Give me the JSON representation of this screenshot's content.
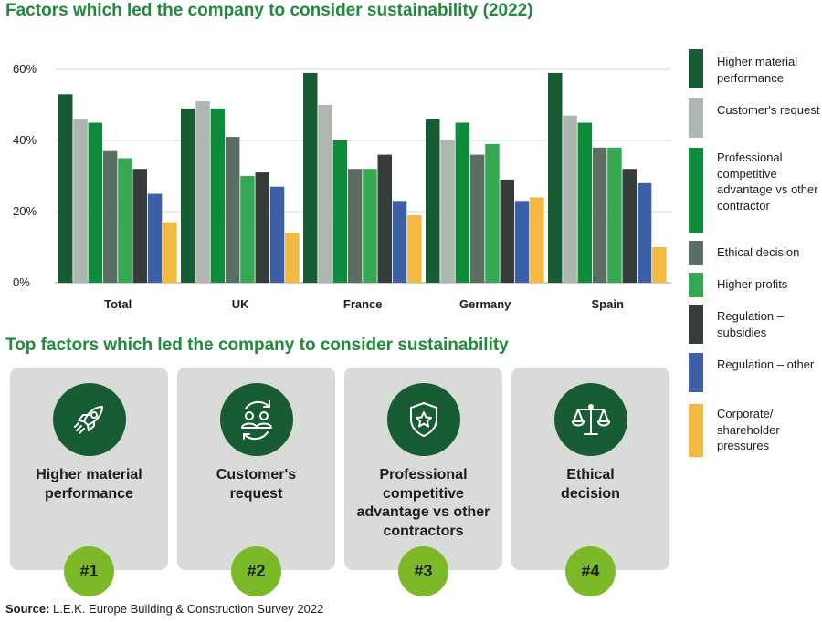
{
  "title": "Factors which led the company to consider sustainability (2022)",
  "subtitle": "Top factors which led the company to consider sustainability",
  "source_prefix": "Source:",
  "source_text": " L.E.K. Europe Building & Construction Survey 2022",
  "chart_data": {
    "type": "bar",
    "title": "Factors which led the company to consider sustainability (2022)",
    "categories": [
      "Total",
      "UK",
      "France",
      "Germany",
      "Spain"
    ],
    "ylim": [
      0,
      60
    ],
    "yticks": [
      0,
      20,
      40,
      60
    ],
    "ytick_labels": [
      "0%",
      "20%",
      "40%",
      "60%"
    ],
    "grid": true,
    "legend_position": "right",
    "series": [
      {
        "name": "Higher material performance",
        "color": "#175c33",
        "values": [
          53,
          49,
          59,
          46,
          59
        ]
      },
      {
        "name": "Customer's request",
        "color": "#aeb6b0",
        "values": [
          46,
          51,
          50,
          40,
          47
        ]
      },
      {
        "name": "Professional competitive advantage vs other contractor",
        "color": "#0f8c3b",
        "values": [
          45,
          49,
          40,
          45,
          45
        ]
      },
      {
        "name": "Ethical decision",
        "color": "#5b6e63",
        "values": [
          37,
          41,
          32,
          36,
          38
        ]
      },
      {
        "name": "Higher profits",
        "color": "#34a853",
        "values": [
          35,
          30,
          32,
          39,
          38
        ]
      },
      {
        "name": "Regulation – subsidies",
        "color": "#353c3a",
        "values": [
          32,
          31,
          36,
          29,
          32
        ]
      },
      {
        "name": "Regulation – other",
        "color": "#3d5fa6",
        "values": [
          25,
          27,
          23,
          23,
          28
        ]
      },
      {
        "name": "Corporate/ shareholder pressures",
        "color": "#f4b942",
        "values": [
          17,
          14,
          19,
          24,
          10
        ]
      }
    ]
  },
  "legend": [
    "Higher material performance",
    "Customer's request",
    "Professional competitive advantage vs other contractor",
    "Ethical decision",
    "Higher profits",
    "Regulation – subsidies",
    "Regulation – other",
    "Corporate/ shareholder pressures"
  ],
  "top_factors": [
    {
      "label": "Higher material performance",
      "rank": "#1",
      "icon": "rocket-icon"
    },
    {
      "label": "Customer's request",
      "rank": "#2",
      "icon": "customers-exchange-icon"
    },
    {
      "label": "Professional competitive advantage vs other contractors",
      "rank": "#3",
      "icon": "shield-star-icon"
    },
    {
      "label": "Ethical decision",
      "rank": "#4",
      "icon": "scales-icon"
    }
  ]
}
